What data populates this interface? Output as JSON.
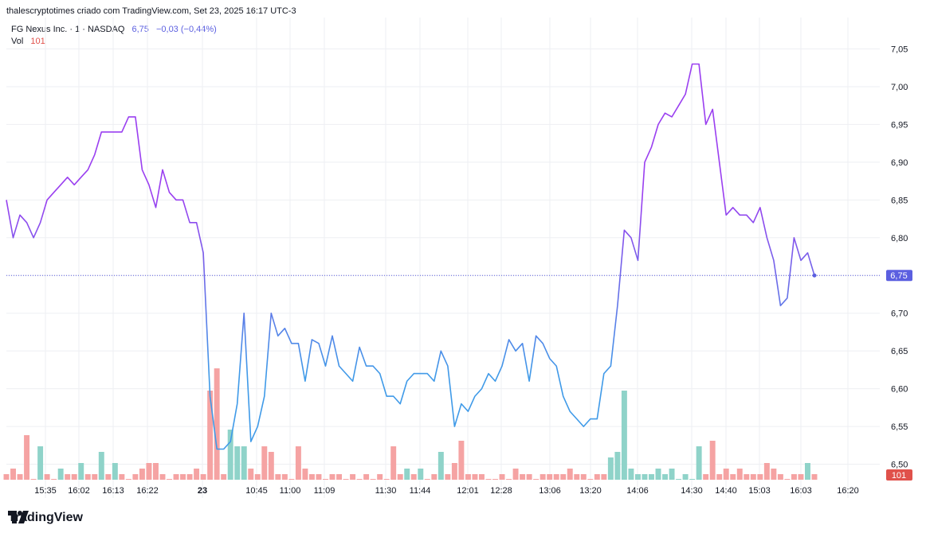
{
  "header": {
    "text": "thalescryptotimes criado com TradingView.com, Set 23, 2025 16:17 UTC-3"
  },
  "legend": {
    "symbol": "FG Nexus Inc. · 1 · NASDAQ",
    "last": "6,75",
    "change": "−0,03 (−0,44%)",
    "vol_label": "Vol",
    "vol_value": "101"
  },
  "footer": {
    "brand": "TradingView",
    "logo_icon": "tradingview-logo-icon"
  },
  "colors": {
    "line_low": "#3f9ae8",
    "line_high": "#9a3ff0",
    "vol_up": "#8fd3c9",
    "vol_down": "#f5a3a3",
    "last_badge": "#5b5fe0",
    "vol_badge": "#e0514b",
    "grid": "#eeeff3"
  },
  "chart_data": {
    "type": "line",
    "title": "",
    "xlabel": "",
    "ylabel": "",
    "ylim": [
      6.47,
      7.06
    ],
    "y_ticks": [
      "7,05",
      "7,00",
      "6,95",
      "6,90",
      "6,85",
      "6,80",
      "6,75",
      "6,70",
      "6,65",
      "6,60",
      "6,55",
      "6,50"
    ],
    "y_tick_values": [
      7.05,
      7.0,
      6.95,
      6.9,
      6.85,
      6.8,
      6.75,
      6.7,
      6.65,
      6.6,
      6.55,
      6.5
    ],
    "x_tick_labels": [
      "15:35",
      "16:02",
      "16:13",
      "16:22",
      "23",
      "10:45",
      "11:00",
      "11:09",
      "11:30",
      "11:44",
      "12:01",
      "12:28",
      "13:06",
      "13:20",
      "14:06",
      "14:30",
      "14:40",
      "15:03",
      "16:03",
      "16:20"
    ],
    "last_value_label": "6,75",
    "volume_label": "101",
    "series": [
      {
        "values": [
          6.85,
          6.8,
          6.83,
          6.82,
          6.8,
          6.82,
          6.85,
          6.86,
          6.87,
          6.88,
          6.87,
          6.88,
          6.89,
          6.91,
          6.94,
          6.94,
          6.94,
          6.94,
          6.96,
          6.96,
          6.89,
          6.87,
          6.84,
          6.89,
          6.86,
          6.85,
          6.85,
          6.82,
          6.82,
          6.78,
          6.59,
          6.52,
          6.52,
          6.53,
          6.58,
          6.7,
          6.53,
          6.55,
          6.59,
          6.7,
          6.67,
          6.68,
          6.66,
          6.66,
          6.61,
          6.665,
          6.66,
          6.63,
          6.67,
          6.63,
          6.62,
          6.61,
          6.655,
          6.63,
          6.63,
          6.62,
          6.59,
          6.59,
          6.58,
          6.61,
          6.62,
          6.62,
          6.62,
          6.61,
          6.65,
          6.63,
          6.55,
          6.58,
          6.57,
          6.59,
          6.6,
          6.62,
          6.61,
          6.63,
          6.665,
          6.65,
          6.66,
          6.61,
          6.67,
          6.66,
          6.64,
          6.63,
          6.59,
          6.57,
          6.56,
          6.55,
          6.56,
          6.56,
          6.62,
          6.63,
          6.71,
          6.81,
          6.8,
          6.77,
          6.9,
          6.92,
          6.95,
          6.965,
          6.96,
          6.975,
          6.99,
          7.03,
          7.03,
          6.95,
          6.97,
          6.9,
          6.83,
          6.84,
          6.83,
          6.83,
          6.82,
          6.84,
          6.8,
          6.77,
          6.71,
          6.72,
          6.8,
          6.77,
          6.78,
          6.75
        ]
      }
    ],
    "volume": {
      "values": [
        1,
        2,
        1,
        8,
        0,
        6,
        1,
        0,
        2,
        1,
        1,
        3,
        1,
        1,
        5,
        1,
        3,
        1,
        0,
        1,
        2,
        3,
        3,
        1,
        0,
        1,
        1,
        1,
        2,
        1,
        16,
        20,
        1,
        9,
        6,
        6,
        2,
        1,
        6,
        5,
        1,
        1,
        0,
        6,
        2,
        1,
        1,
        0,
        1,
        1,
        0,
        1,
        0,
        1,
        0,
        1,
        0,
        6,
        1,
        2,
        1,
        2,
        0,
        1,
        5,
        1,
        3,
        7,
        1,
        1,
        1,
        0,
        0,
        1,
        0,
        2,
        1,
        1,
        0,
        1,
        1,
        1,
        1,
        2,
        1,
        1,
        0,
        1,
        1,
        4,
        5,
        16,
        2,
        1,
        1,
        1,
        2,
        1,
        2,
        0,
        1,
        0,
        6,
        1,
        7,
        1,
        2,
        1,
        2,
        1,
        1,
        1,
        3,
        2,
        1,
        0,
        1,
        1,
        3,
        1
      ],
      "up": [
        false,
        false,
        false,
        false,
        false,
        true,
        false,
        false,
        true,
        false,
        false,
        true,
        false,
        false,
        true,
        false,
        true,
        false,
        false,
        false,
        false,
        false,
        false,
        false,
        false,
        false,
        false,
        false,
        false,
        false,
        false,
        false,
        false,
        true,
        true,
        true,
        false,
        false,
        false,
        false,
        false,
        false,
        false,
        false,
        false,
        false,
        false,
        false,
        false,
        false,
        false,
        false,
        false,
        false,
        false,
        false,
        false,
        false,
        false,
        true,
        false,
        true,
        false,
        false,
        true,
        false,
        false,
        false,
        false,
        false,
        false,
        false,
        false,
        false,
        false,
        false,
        false,
        false,
        false,
        false,
        false,
        false,
        false,
        false,
        false,
        false,
        false,
        false,
        false,
        true,
        true,
        true,
        true,
        true,
        true,
        true,
        true,
        true,
        true,
        true,
        true,
        true,
        true,
        false,
        false,
        false,
        false,
        false,
        false,
        false,
        false,
        false,
        false,
        false,
        false,
        false,
        false,
        false,
        true,
        false
      ]
    }
  }
}
